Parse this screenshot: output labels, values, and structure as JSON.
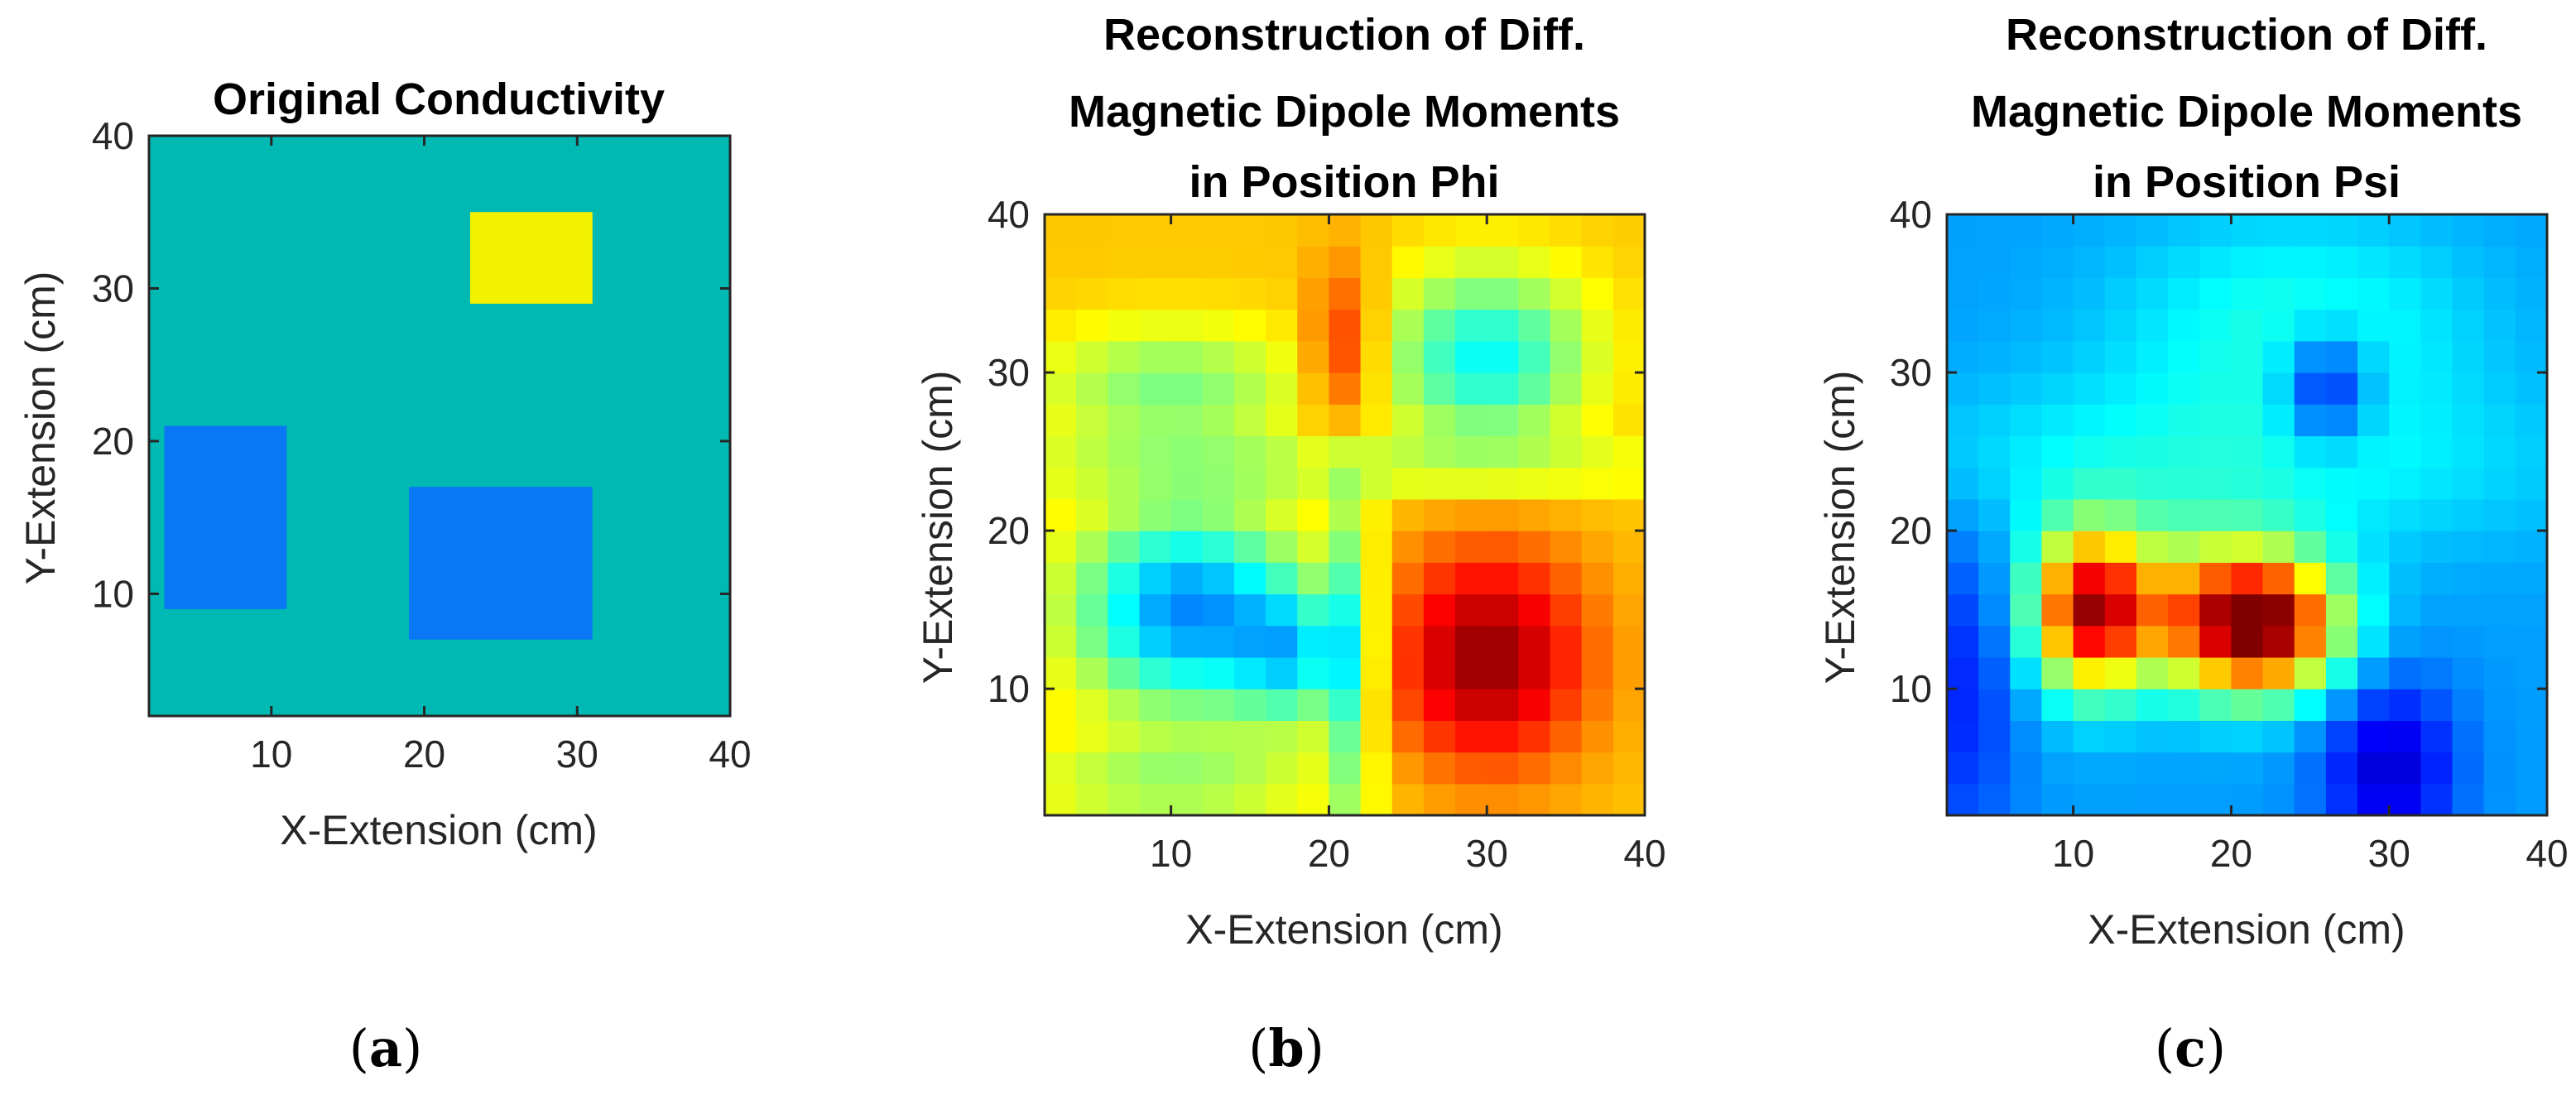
{
  "colors": {
    "background_teal": "#00b9b2",
    "region_yellow": "#f2f200",
    "region_blue": "#0a78f5",
    "axis": "#262626"
  },
  "chart_data": [
    {
      "id": "a",
      "type": "heatmap",
      "panel_label": "a",
      "title": [
        "Original Conductivity"
      ],
      "xlabel": "X-Extension (cm)",
      "ylabel": "Y-Extension (cm)",
      "xlim": [
        2,
        40
      ],
      "ylim": [
        2,
        40
      ],
      "xticks": [
        10,
        20,
        30,
        40
      ],
      "yticks": [
        10,
        20,
        30,
        40
      ],
      "background_color": "#00b9b2",
      "rects": [
        {
          "name": "yellow-region",
          "x": [
            23,
            31
          ],
          "y": [
            29,
            35
          ],
          "color": "#f2f200"
        },
        {
          "name": "blue-region-left",
          "x": [
            3,
            11
          ],
          "y": [
            9,
            21
          ],
          "color": "#0a78f5"
        },
        {
          "name": "blue-region-right",
          "x": [
            19,
            31
          ],
          "y": [
            7,
            17
          ],
          "color": "#0a78f5"
        }
      ]
    },
    {
      "id": "b",
      "type": "heatmap",
      "panel_label": "b",
      "title": [
        "Reconstruction of Diff.",
        "Magnetic Dipole Moments",
        "in Position Phi"
      ],
      "xlabel": "X-Extension (cm)",
      "ylabel": "Y-Extension (cm)",
      "xlim": [
        2,
        40
      ],
      "ylim": [
        2,
        40
      ],
      "xticks": [
        10,
        20,
        30,
        40
      ],
      "yticks": [
        10,
        20,
        30,
        40
      ],
      "grid_cells": 19,
      "colormap": "jet",
      "base": 0.68,
      "blobs": [
        {
          "x": 11,
          "y": 15,
          "sx": 5,
          "sy": 4.5,
          "a": -0.42
        },
        {
          "x": 18,
          "y": 12,
          "sx": 2.6,
          "sy": 3,
          "a": -0.25
        },
        {
          "x": 30,
          "y": 12,
          "sx": 4.5,
          "sy": 5,
          "a": 0.3
        },
        {
          "x": 30,
          "y": 31,
          "sx": 4.5,
          "sy": 4,
          "a": -0.3
        },
        {
          "x": 21,
          "y": 31,
          "sx": 1.6,
          "sy": 4,
          "a": 0.2
        },
        {
          "x": 10,
          "y": 29,
          "sx": 6,
          "sy": 3,
          "a": -0.18
        },
        {
          "x": 21.5,
          "y": 12,
          "sx": 1,
          "sy": 9,
          "a": -0.22
        },
        {
          "x": 23,
          "y": 24,
          "sx": 20,
          "sy": 1.2,
          "a": -0.1
        },
        {
          "x": 10,
          "y": 4,
          "sx": 7,
          "sy": 2,
          "a": -0.14
        }
      ]
    },
    {
      "id": "c",
      "type": "heatmap",
      "panel_label": "c",
      "title": [
        "Reconstruction of Diff.",
        "Magnetic Dipole Moments",
        "in Position Psi"
      ],
      "xlabel": "X-Extension (cm)",
      "ylabel": "Y-Extension (cm)",
      "xlim": [
        2,
        40
      ],
      "ylim": [
        2,
        40
      ],
      "xticks": [
        10,
        20,
        30,
        40
      ],
      "yticks": [
        10,
        20,
        30,
        40
      ],
      "grid_cells": 19,
      "colormap": "jet",
      "base": 0.28,
      "blobs": [
        {
          "x": 11,
          "y": 15,
          "sx": 2.5,
          "sy": 3.5,
          "a": 0.55
        },
        {
          "x": 22,
          "y": 14,
          "sx": 3.5,
          "sy": 3,
          "a": 0.62
        },
        {
          "x": 17,
          "y": 15,
          "sx": 5,
          "sy": 3.5,
          "a": 0.28
        },
        {
          "x": 26,
          "y": 29,
          "sx": 2,
          "sy": 2.5,
          "a": -0.22
        },
        {
          "x": 24,
          "y": 33,
          "sx": 8,
          "sy": 5,
          "a": 0.12
        },
        {
          "x": 30,
          "y": 5,
          "sx": 3,
          "sy": 4,
          "a": -0.2
        },
        {
          "x": 3,
          "y": 10,
          "sx": 2.5,
          "sy": 8,
          "a": -0.12
        },
        {
          "x": 18,
          "y": 24,
          "sx": 16,
          "sy": 4,
          "a": 0.1
        }
      ]
    }
  ]
}
